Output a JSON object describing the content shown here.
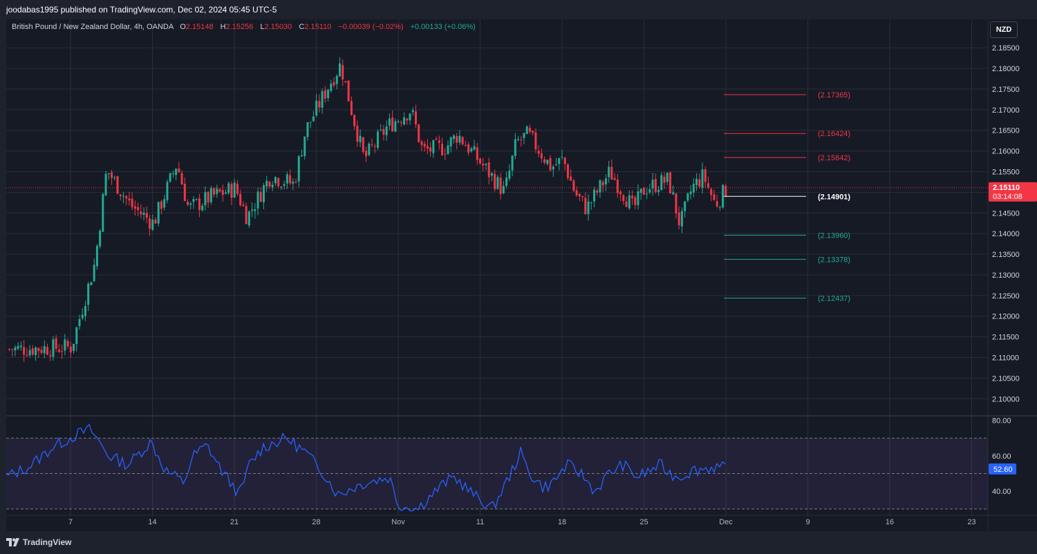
{
  "header": {
    "published_line": "joodabas1995 published on TradingView.com, Dec 02, 2024 05:45 UTC-5"
  },
  "legend": {
    "symbol": "British Pound / New Zealand Dollar, 4h, OANDA",
    "open_key": "O",
    "open": "2.15148",
    "high_key": "H",
    "high": "2.15256",
    "low_key": "L",
    "low": "2.15030",
    "close_key": "C",
    "close": "2.15110",
    "change": "−0.00039 (−0.02%)",
    "change2": "+0.00133 (+0.06%)"
  },
  "currency_button": "NZD",
  "brand": {
    "name": "TradingView"
  },
  "colors": {
    "up": "#22ab94",
    "down": "#f23645",
    "rsi": "#2962ff",
    "background": "#161a25",
    "grid": "#2a2e39",
    "level_white": "#ffffff"
  },
  "chart_data": [
    {
      "type": "candlestick",
      "series_name": "GBPNZD",
      "price_axis": {
        "ticks": [
          "2.18500",
          "2.18000",
          "2.17500",
          "2.17000",
          "2.16500",
          "2.16000",
          "2.15500",
          "2.15000",
          "2.14500",
          "2.14000",
          "2.13500",
          "2.13000",
          "2.12500",
          "2.12000",
          "2.11500",
          "2.11000",
          "2.10500",
          "2.10000"
        ],
        "ylim": [
          2.0962,
          2.1882
        ]
      },
      "time_axis": {
        "ticks": [
          "7",
          "14",
          "21",
          "28",
          "Nov",
          "11",
          "18",
          "25",
          "Dec",
          "9",
          "16",
          "23"
        ]
      },
      "last_price": {
        "value": "2.15110",
        "countdown": "03:14:08"
      },
      "candle_path": [
        [
          "7",
          2.1125
        ],
        [
          "9",
          2.133
        ],
        [
          "10",
          2.1555
        ],
        [
          "12",
          2.147
        ],
        [
          "14",
          2.1425
        ],
        [
          "16",
          2.157
        ],
        [
          "17",
          2.146
        ],
        [
          "19",
          2.149
        ],
        [
          "21",
          2.151
        ],
        [
          "22",
          2.144
        ],
        [
          "24",
          2.154
        ],
        [
          "26",
          2.152
        ],
        [
          "27",
          2.165
        ],
        [
          "29",
          2.176
        ],
        [
          "30",
          2.181
        ],
        [
          "31",
          2.169
        ],
        [
          "Nov 1",
          2.158
        ],
        [
          "Nov 3",
          2.166
        ],
        [
          "Nov 5",
          2.17
        ],
        [
          "Nov 6",
          2.16
        ],
        [
          "Nov 8",
          2.161
        ],
        [
          "Nov 9",
          2.164
        ],
        [
          "Nov 11",
          2.157
        ],
        [
          "Nov 13",
          2.15
        ],
        [
          "Nov 14",
          2.162
        ],
        [
          "Nov 15",
          2.164
        ],
        [
          "Nov 17",
          2.156
        ],
        [
          "Nov 18",
          2.158
        ],
        [
          "Nov 19",
          2.15
        ],
        [
          "Nov 20",
          2.146
        ],
        [
          "Nov 22",
          2.155
        ],
        [
          "Nov 24",
          2.146
        ],
        [
          "Nov 25",
          2.151
        ],
        [
          "Nov 27",
          2.153
        ],
        [
          "Nov 28",
          2.142
        ],
        [
          "Nov 29",
          2.151
        ],
        [
          "Nov 30",
          2.154
        ],
        [
          "Dec 1",
          2.147
        ],
        [
          "Dec 2",
          2.1511
        ]
      ],
      "levels": [
        {
          "value": 2.17365,
          "label": "(2.17365)",
          "color": "#f23645"
        },
        {
          "value": 2.16424,
          "label": "(2.16424)",
          "color": "#f23645"
        },
        {
          "value": 2.15842,
          "label": "(2.15842)",
          "color": "#f23645"
        },
        {
          "value": 2.14901,
          "label": "(2.14901)",
          "color": "#ffffff"
        },
        {
          "value": 2.1396,
          "label": "(2.13960)",
          "color": "#22ab94"
        },
        {
          "value": 2.13378,
          "label": "(2.13378)",
          "color": "#22ab94"
        },
        {
          "value": 2.12437,
          "label": "(2.12437)",
          "color": "#22ab94"
        }
      ],
      "grid": true
    },
    {
      "type": "line",
      "series_name": "RSI",
      "y_axis": {
        "ticks": [
          "80.00",
          "60.00",
          "40.00"
        ],
        "ylim": [
          28,
          81
        ]
      },
      "band": [
        30,
        70
      ],
      "mid_line": 50,
      "last_value": "52.60",
      "path": [
        [
          0,
          48
        ],
        [
          0.025,
          54
        ],
        [
          0.05,
          65
        ],
        [
          0.075,
          72
        ],
        [
          0.09,
          75
        ],
        [
          0.11,
          60
        ],
        [
          0.13,
          55
        ],
        [
          0.155,
          68
        ],
        [
          0.17,
          52
        ],
        [
          0.19,
          45
        ],
        [
          0.2,
          60
        ],
        [
          0.215,
          66
        ],
        [
          0.23,
          52
        ],
        [
          0.25,
          38
        ],
        [
          0.26,
          55
        ],
        [
          0.275,
          65
        ],
        [
          0.3,
          70
        ],
        [
          0.32,
          62
        ],
        [
          0.34,
          50
        ],
        [
          0.355,
          38
        ],
        [
          0.37,
          42
        ],
        [
          0.385,
          45
        ],
        [
          0.41,
          48
        ],
        [
          0.42,
          32
        ],
        [
          0.44,
          30
        ],
        [
          0.455,
          38
        ],
        [
          0.47,
          45
        ],
        [
          0.48,
          48
        ],
        [
          0.5,
          38
        ],
        [
          0.52,
          30
        ],
        [
          0.54,
          50
        ],
        [
          0.55,
          62
        ],
        [
          0.56,
          50
        ],
        [
          0.575,
          42
        ],
        [
          0.585,
          45
        ],
        [
          0.6,
          55
        ],
        [
          0.615,
          50
        ],
        [
          0.63,
          40
        ],
        [
          0.645,
          50
        ],
        [
          0.66,
          55
        ],
        [
          0.675,
          48
        ],
        [
          0.69,
          52
        ],
        [
          0.7,
          55
        ],
        [
          0.71,
          50
        ],
        [
          0.72,
          48
        ],
        [
          0.735,
          52
        ],
        [
          0.75,
          53
        ],
        [
          0.76,
          54
        ],
        [
          0.77,
          52.6
        ]
      ]
    }
  ]
}
